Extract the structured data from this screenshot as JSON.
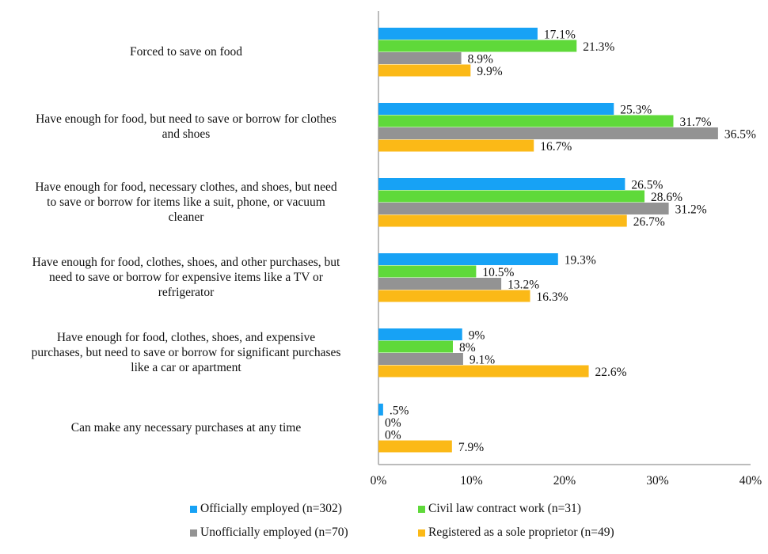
{
  "chart_data": {
    "type": "bar",
    "orientation": "horizontal",
    "title": "",
    "xlabel": "",
    "ylabel": "",
    "xlim": [
      0,
      40
    ],
    "x_ticks": [
      "0%",
      "10%",
      "20%",
      "30%",
      "40%"
    ],
    "grid": false,
    "legend_position": "bottom",
    "categories": [
      "Forced to save on food",
      "Have enough for food, but need to save or borrow for clothes and shoes",
      "Have enough for food, necessary clothes, and shoes, but need to save or borrow for items like a suit, phone, or vacuum cleaner",
      "Have enough for food, clothes, shoes, and other purchases, but need to save or borrow for expensive items like a TV or refrigerator",
      "Have enough for food, clothes, shoes, and expensive purchases, but need to save or borrow for significant purchases like a car or apartment",
      "Can make any necessary purchases at any time"
    ],
    "category_lines": [
      [
        "Forced to save on food"
      ],
      [
        "Have enough for food, but need to save or borrow for clothes",
        "and shoes"
      ],
      [
        "Have enough for food, necessary clothes, and shoes, but need",
        "to save or borrow for items like a suit, phone, or vacuum",
        "cleaner"
      ],
      [
        "Have enough for food, clothes, shoes, and other purchases, but",
        "need to save or borrow for expensive items like a TV or",
        "refrigerator"
      ],
      [
        "Have enough for food, clothes, shoes, and expensive",
        "purchases, but need to save or borrow for significant purchases",
        "like a car or apartment"
      ],
      [
        "Can make any necessary purchases at any time"
      ]
    ],
    "series": [
      {
        "name": "Officially employed (n=302)",
        "color": "#17a2f5",
        "values": [
          17.1,
          25.3,
          26.5,
          19.3,
          9,
          0.5
        ],
        "labels": [
          "17.1%",
          "25.3%",
          "26.5%",
          "19.3%",
          "9%",
          ".5%"
        ]
      },
      {
        "name": "Civil law contract work (n=31)",
        "color": "#5fd93a",
        "values": [
          21.3,
          31.7,
          28.6,
          10.5,
          8,
          0
        ],
        "labels": [
          "21.3%",
          "31.7%",
          "28.6%",
          "10.5%",
          "8%",
          "0%"
        ]
      },
      {
        "name": "Unofficially employed (n=70)",
        "color": "#939393",
        "values": [
          8.9,
          36.5,
          31.2,
          13.2,
          9.1,
          0
        ],
        "labels": [
          "8.9%",
          "36.5%",
          "31.2%",
          "13.2%",
          "9.1%",
          "0%"
        ]
      },
      {
        "name": "Registered as a sole proprietor (n=49)",
        "color": "#fbb917",
        "values": [
          9.9,
          16.7,
          26.7,
          16.3,
          22.6,
          7.9
        ],
        "labels": [
          "9.9%",
          "16.7%",
          "26.7%",
          "16.3%",
          "22.6%",
          "7.9%"
        ]
      }
    ]
  }
}
